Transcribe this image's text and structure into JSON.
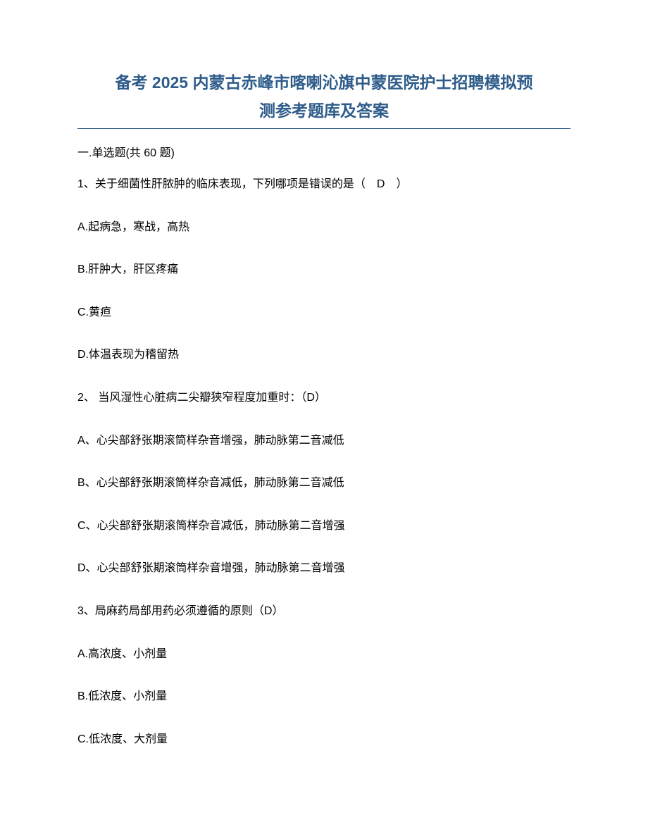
{
  "title_line1": "备考 2025 内蒙古赤峰市喀喇沁旗中蒙医院护士招聘模拟预",
  "title_line2": "测参考题库及答案",
  "section_header": "一.单选题(共 60 题)",
  "q1": {
    "text": "1、关于细菌性肝脓肿的临床表现，下列哪项是错误的是（　D　）",
    "a": "A.起病急，寒战，高热",
    "b": "B.肝肿大，肝区疼痛",
    "c": "C.黄疸",
    "d": "D.体温表现为稽留热"
  },
  "q2": {
    "text": "2、 当风湿性心脏病二尖瓣狭窄程度加重时：（D）",
    "a": "A、心尖部舒张期滚筒样杂音增强，肺动脉第二音减低",
    "b": "B、心尖部舒张期滚筒样杂音减低，肺动脉第二音减低",
    "c": "C、心尖部舒张期滚筒样杂音减低，肺动脉第二音增强",
    "d": "D、心尖部舒张期滚筒样杂音增强，肺动脉第二音增强"
  },
  "q3": {
    "text": "3、局麻药局部用药必须遵循的原则（D）",
    "a": "A.高浓度、小剂量",
    "b": "B.低浓度、小剂量",
    "c": "C.低浓度、大剂量"
  }
}
